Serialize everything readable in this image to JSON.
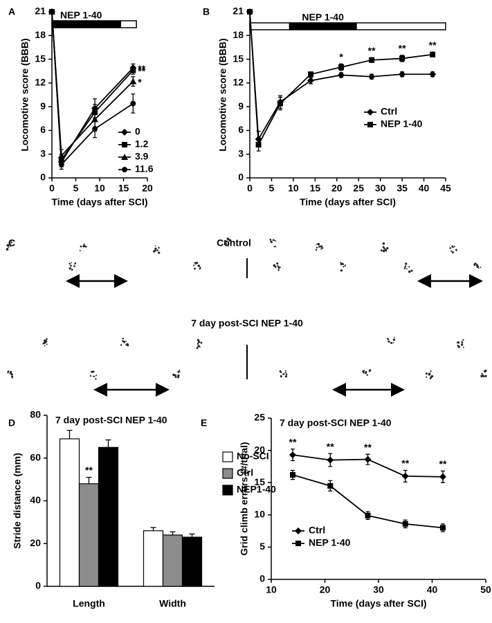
{
  "chart_data": [
    {
      "type": "line",
      "panel_label": "A",
      "x_label": "Time (days after SCI)",
      "y_label": "Locomotive score (BBB)",
      "x": [
        0,
        2,
        9,
        17
      ],
      "xlim": [
        0,
        20
      ],
      "xticks": [
        0,
        5,
        10,
        15,
        20
      ],
      "ylim": [
        0,
        21
      ],
      "yticks": [
        0,
        3,
        6,
        9,
        12,
        15,
        18,
        21
      ],
      "legend": "lower right",
      "treatment": {
        "label": "NEP 1-40",
        "on": [
          0,
          14.5
        ],
        "range": [
          0,
          17.7
        ]
      },
      "series": [
        {
          "name": "0",
          "color": "#000000",
          "marker": "diamond",
          "values": [
            21,
            2.0,
            8.8,
            13.9
          ],
          "errors": [
            0,
            0.6,
            1.2,
            0.5
          ],
          "significance": "**"
        },
        {
          "name": "1.2",
          "color": "#000000",
          "marker": "square",
          "values": [
            21,
            2.3,
            8.3,
            13.6
          ],
          "errors": [
            0,
            0.7,
            1.0,
            0.5
          ],
          "significance": "**"
        },
        {
          "name": "3.9",
          "color": "#000000",
          "marker": "triangle",
          "values": [
            21,
            2.8,
            7.4,
            12.2
          ],
          "errors": [
            0,
            0.8,
            1.5,
            0.6
          ],
          "significance": "*"
        },
        {
          "name": "11.6",
          "color": "#000000",
          "marker": "circle",
          "values": [
            21,
            1.7,
            6.2,
            9.4
          ],
          "errors": [
            0,
            0.6,
            1.1,
            1.2
          ]
        }
      ]
    },
    {
      "type": "line",
      "panel_label": "B",
      "x_label": "Time (days after SCI)",
      "y_label": "Locomotive score (BBB)",
      "x": [
        0,
        2,
        7,
        14,
        21,
        28,
        35,
        42
      ],
      "xlim": [
        0,
        45
      ],
      "xticks": [
        0,
        5,
        10,
        15,
        20,
        25,
        30,
        35,
        40,
        45
      ],
      "ylim": [
        0,
        21
      ],
      "yticks": [
        0,
        3,
        6,
        9,
        12,
        15,
        18,
        21
      ],
      "legend": "right",
      "treatment": {
        "label": "NEP 1-40",
        "on": [
          9,
          24.6
        ],
        "range": [
          0,
          45
        ]
      },
      "significance": [
        null,
        null,
        null,
        null,
        "*",
        "**",
        "**",
        "**"
      ],
      "series": [
        {
          "name": "Ctrl",
          "color": "#000000",
          "marker": "diamond",
          "values": [
            21,
            4.9,
            9.6,
            12.3,
            13.0,
            12.8,
            13.1,
            13.1
          ],
          "errors": [
            0,
            1.0,
            0.8,
            0.4,
            0.3,
            0.3,
            0.3,
            0.3
          ]
        },
        {
          "name": "NEP 1-40",
          "color": "#000000",
          "marker": "square",
          "values": [
            21,
            4.2,
            9.4,
            13.1,
            14.0,
            14.9,
            15.1,
            15.6
          ],
          "errors": [
            0,
            0.8,
            0.8,
            0.3,
            0.4,
            0.3,
            0.4,
            0.3
          ]
        }
      ]
    },
    {
      "type": "bar",
      "panel_label": "D",
      "title": "7 day post-SCI NEP 1-40",
      "y_label": "Stride distance (mm)",
      "categories": [
        "Length",
        "Width"
      ],
      "ylim": [
        0,
        80
      ],
      "yticks": [
        0,
        20,
        40,
        60,
        80
      ],
      "legend": "upper right",
      "series": [
        {
          "name": "No-SCI",
          "color": "#ffffff",
          "values": [
            69,
            26
          ],
          "errors": [
            4,
            1.5
          ]
        },
        {
          "name": "Ctrl",
          "color": "#8c8c8c",
          "values": [
            48,
            24
          ],
          "errors": [
            3,
            1.5
          ],
          "significance": [
            "**",
            null
          ]
        },
        {
          "name": "NEP1-40",
          "color": "#000000",
          "values": [
            65,
            23
          ],
          "errors": [
            3.5,
            1.5
          ]
        }
      ]
    },
    {
      "type": "line",
      "panel_label": "E",
      "title": "7 day post-SCI NEP 1-40",
      "x_label": "Time (days after SCI)",
      "y_label": "Grid climb errors (#/trial)",
      "x": [
        14,
        21,
        28,
        35,
        42
      ],
      "xlim": [
        10,
        50
      ],
      "xticks": [
        10,
        20,
        30,
        40,
        50
      ],
      "ylim": [
        0,
        25
      ],
      "yticks": [
        0,
        5,
        10,
        15,
        20,
        25
      ],
      "legend": "lower left",
      "significance": [
        "**",
        "**",
        "**",
        "**",
        "**"
      ],
      "series": [
        {
          "name": "Ctrl",
          "color": "#000000",
          "marker": "diamond",
          "values": [
            19.3,
            18.5,
            18.6,
            16.0,
            15.9
          ],
          "errors": [
            0.9,
            1.0,
            0.8,
            0.9,
            0.9
          ]
        },
        {
          "name": "NEP 1-40",
          "color": "#000000",
          "marker": "square",
          "values": [
            16.2,
            14.5,
            9.9,
            8.6,
            8.0
          ],
          "errors": [
            0.7,
            0.8,
            0.6,
            0.6,
            0.6
          ]
        }
      ]
    }
  ],
  "footprints": {
    "panel_label": "C",
    "titles": [
      "Control",
      "7 day post-SCI NEP 1-40"
    ]
  }
}
